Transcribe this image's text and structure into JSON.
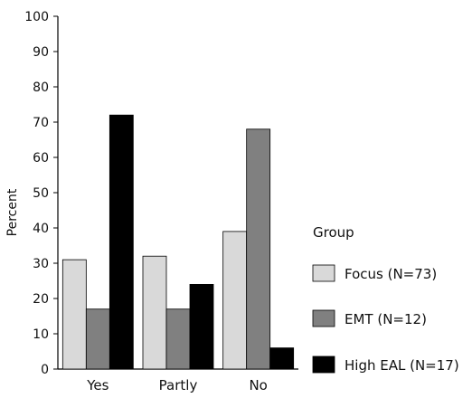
{
  "chart_data": {
    "type": "bar",
    "title": "",
    "xlabel": "",
    "ylabel": "Percent",
    "ylim": [
      0,
      100
    ],
    "yticks": [
      0,
      10,
      20,
      30,
      40,
      50,
      60,
      70,
      80,
      90,
      100
    ],
    "categories": [
      "Yes",
      "Partly",
      "No"
    ],
    "legend": {
      "title": "Group",
      "placement": "right"
    },
    "grid": false,
    "series": [
      {
        "name": "Focus (N=73)",
        "values": [
          31,
          32,
          39
        ],
        "color": "#d9d9d9"
      },
      {
        "name": "EMT (N=12)",
        "values": [
          17,
          17,
          68
        ],
        "color": "#808080"
      },
      {
        "name": "High EAL (N=17)",
        "values": [
          72,
          24,
          6
        ],
        "color": "#000000"
      }
    ]
  }
}
